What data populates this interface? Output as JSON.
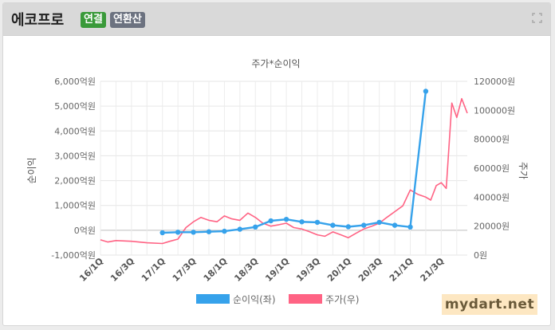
{
  "header": {
    "company": "에코프로",
    "badge_consolidated": "연결",
    "badge_annualized": "연환산",
    "badge_consolidated_color": "#3a9a3a",
    "badge_annualized_color": "#6c7280",
    "expand_icon": "expand-icon"
  },
  "watermark": "mydart.net",
  "chart_data": {
    "type": "line",
    "title": "주가*순이익",
    "ylabel_left": "순이익",
    "ylabel_right": "주가",
    "categories": [
      "16/1Q",
      "16/3Q",
      "17/1Q",
      "17/3Q",
      "18/1Q",
      "18/3Q",
      "19/1Q",
      "19/3Q",
      "20/1Q",
      "20/3Q",
      "21/1Q",
      "21/3Q"
    ],
    "x_range": [
      2016.0,
      2021.92
    ],
    "left_axis": {
      "ylim": [
        -1000,
        6000
      ],
      "ticks": [
        -1000,
        0,
        1000,
        2000,
        3000,
        4000,
        5000,
        6000
      ],
      "tick_labels": [
        "-1,000억원",
        "0억원",
        "1,000억원",
        "2,000억원",
        "3,000억원",
        "4,000억원",
        "5,000억원",
        "6,000억원"
      ]
    },
    "right_axis": {
      "ylim": [
        0,
        120000
      ],
      "ticks": [
        0,
        20000,
        40000,
        60000,
        80000,
        100000,
        120000
      ],
      "tick_labels": [
        "0원",
        "20000원",
        "40000원",
        "60000원",
        "80000원",
        "100000원",
        "120000원"
      ]
    },
    "grid": true,
    "legend_position": "bottom",
    "series": [
      {
        "name": "순이익(좌)",
        "axis": "left",
        "color": "#36a2eb",
        "x": [
          2017.0,
          2017.25,
          2017.5,
          2017.75,
          2018.0,
          2018.25,
          2018.5,
          2018.75,
          2019.0,
          2019.25,
          2019.5,
          2019.75,
          2020.0,
          2020.25,
          2020.5,
          2020.75,
          2021.0,
          2021.25,
          2021.5
        ],
        "values": [
          -100,
          -80,
          -80,
          -60,
          -40,
          40,
          130,
          380,
          440,
          340,
          320,
          200,
          140,
          200,
          320,
          200,
          130,
          5600,
          null
        ]
      },
      {
        "name": "주가(우)",
        "axis": "right",
        "color": "#ff6384",
        "x": [
          2016.0,
          2016.12,
          2016.25,
          2016.5,
          2016.75,
          2017.0,
          2017.12,
          2017.25,
          2017.38,
          2017.5,
          2017.62,
          2017.75,
          2017.88,
          2018.0,
          2018.12,
          2018.25,
          2018.38,
          2018.5,
          2018.62,
          2018.75,
          2018.88,
          2019.0,
          2019.12,
          2019.25,
          2019.38,
          2019.5,
          2019.62,
          2019.75,
          2019.88,
          2020.0,
          2020.12,
          2020.25,
          2020.38,
          2020.5,
          2020.62,
          2020.75,
          2020.88,
          2021.0,
          2021.12,
          2021.25,
          2021.33,
          2021.42,
          2021.5,
          2021.58,
          2021.67,
          2021.75,
          2021.83,
          2021.92
        ],
        "values": [
          10500,
          9000,
          10000,
          9500,
          8500,
          8000,
          9500,
          11000,
          19000,
          23000,
          26000,
          24000,
          23000,
          27000,
          25000,
          24000,
          29000,
          26000,
          22000,
          20000,
          21000,
          22000,
          19000,
          18000,
          16000,
          14000,
          13000,
          16000,
          14000,
          12000,
          15000,
          18000,
          20000,
          22000,
          26000,
          30000,
          34000,
          45000,
          42000,
          40000,
          38000,
          48000,
          50000,
          46000,
          105000,
          95000,
          108000,
          98000
        ]
      }
    ]
  }
}
